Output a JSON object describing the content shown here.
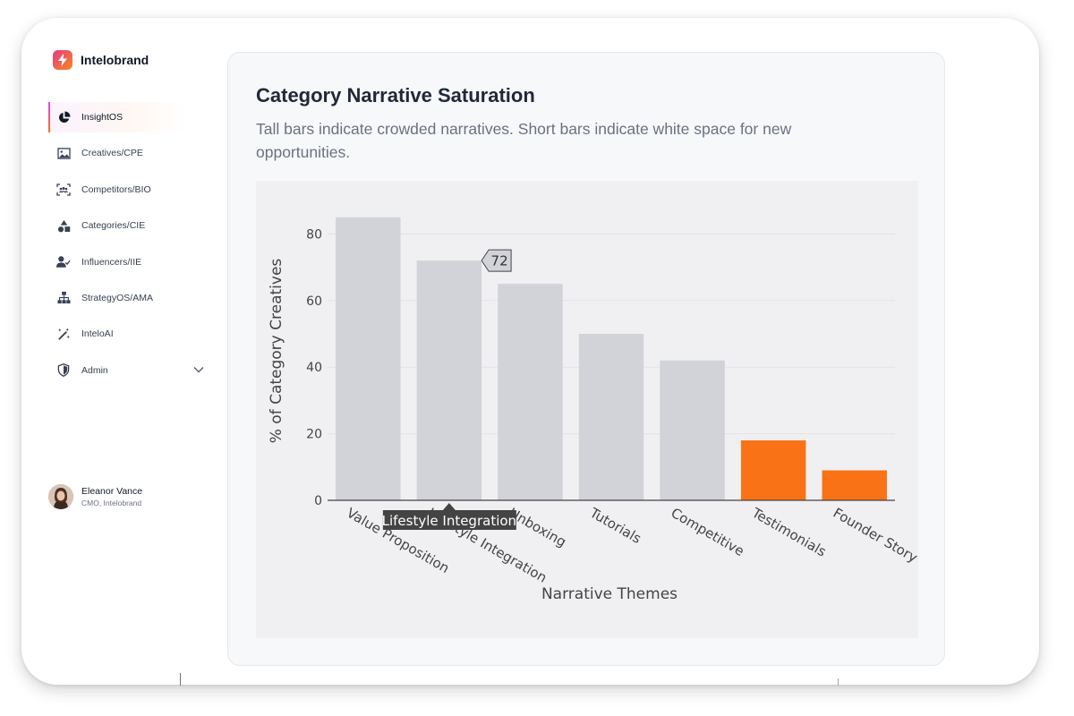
{
  "app": {
    "name": "Intelobrand"
  },
  "sidebar": {
    "items": [
      {
        "label": "InsightOS",
        "icon": "pie-chart-icon",
        "active": true
      },
      {
        "label": "Creatives/CPE",
        "icon": "image-icon"
      },
      {
        "label": "Competitors/BIO",
        "icon": "users-frame-icon"
      },
      {
        "label": "Categories/CIE",
        "icon": "shapes-icon"
      },
      {
        "label": "Influencers/IIE",
        "icon": "user-check-icon"
      },
      {
        "label": "StrategyOS/AMA",
        "icon": "org-chart-icon"
      },
      {
        "label": "InteloAI",
        "icon": "magic-wand-icon"
      },
      {
        "label": "Admin",
        "icon": "shield-icon"
      }
    ]
  },
  "user": {
    "name": "Eleanor Vance",
    "role": "CMO, Intelobrand"
  },
  "card": {
    "title": "Category Narrative Saturation",
    "subtitle": "Tall bars indicate crowded narratives. Short bars indicate white space for new opportunities."
  },
  "colors": {
    "bar_default": "#d1d3d9",
    "bar_highlight": "#f97316",
    "accent_start": "#e8388a",
    "accent_end": "#f58a1f"
  },
  "chart_data": {
    "type": "bar",
    "categories": [
      "Value Proposition",
      "Lifestyle Integration",
      "Unboxing",
      "Tutorials",
      "Competitive",
      "Testimonials",
      "Founder Story"
    ],
    "values": [
      85,
      72,
      65,
      50,
      42,
      18,
      9
    ],
    "highlight": [
      false,
      false,
      false,
      false,
      false,
      true,
      true
    ],
    "xlabel": "Narrative Themes",
    "ylabel": "% of Category Creatives",
    "ylim": [
      0,
      88
    ],
    "yticks": [
      0,
      20,
      40,
      60,
      80
    ],
    "grid": true,
    "hover": {
      "category": "Lifestyle Integration",
      "value": 72
    }
  }
}
